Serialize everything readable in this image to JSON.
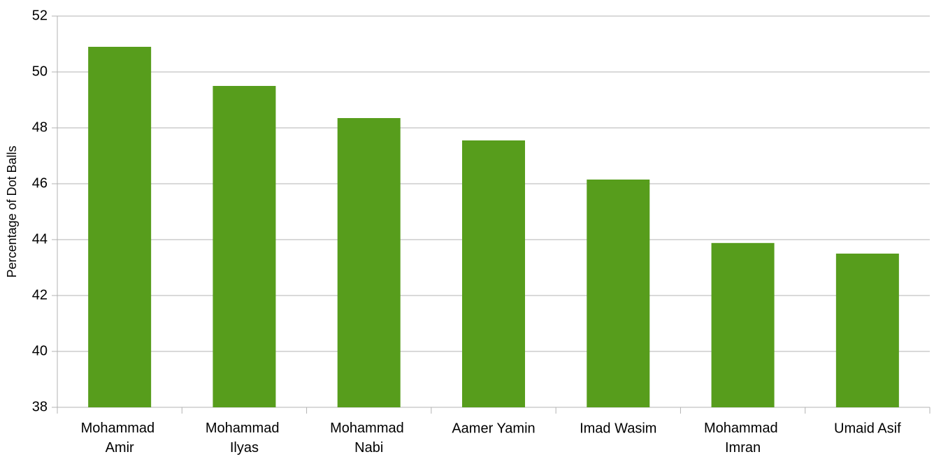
{
  "chart_data": {
    "type": "bar",
    "y_label": "Percentage of Dot Balls",
    "categories": [
      "Mohammad Amir",
      "Mohammad Ilyas",
      "Mohammad Nabi",
      "Aamer Yamin",
      "Imad Wasim",
      "Mohammad Imran",
      "Umaid Asif"
    ],
    "values": [
      50.9,
      49.5,
      48.35,
      47.55,
      46.15,
      43.88,
      43.5
    ],
    "color": "#579d1c",
    "ylim": [
      38,
      52
    ],
    "yticks": [
      38,
      40,
      42,
      44,
      46,
      48,
      50,
      52
    ],
    "grid": true
  }
}
